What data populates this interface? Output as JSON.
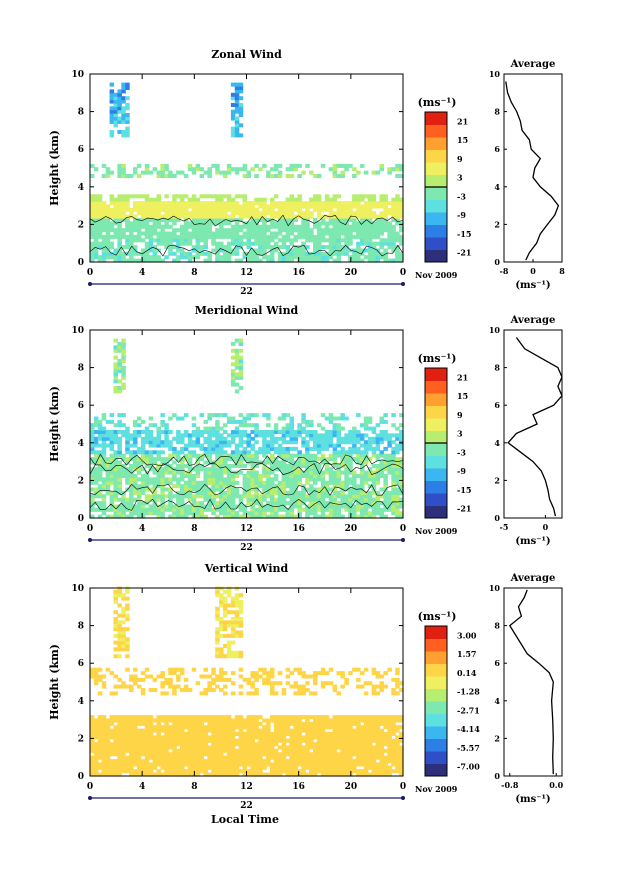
{
  "figure": {
    "date_label": "Nov 2009",
    "day_label": "22",
    "xlabel": "Local Time"
  },
  "chart_data": [
    {
      "type": "heatmap",
      "title": "Zonal Wind",
      "ylabel": "Height (km)",
      "xlim": [
        0,
        24
      ],
      "ylim": [
        0,
        10
      ],
      "x_ticks": [
        "0",
        "4",
        "8",
        "12",
        "16",
        "20",
        "0"
      ],
      "y_ticks": [
        "0",
        "2",
        "4",
        "6",
        "8",
        "10"
      ],
      "colorbar": {
        "unit": "(ms⁻¹)",
        "labels": [
          "21",
          "15",
          "9",
          "3",
          "-3",
          "-9",
          "-15",
          "-21"
        ],
        "range": [
          -24,
          24
        ],
        "zero_line": true
      },
      "average_profile": {
        "title": "Average",
        "xlabel": "(ms⁻¹)",
        "x_ticks": [
          "-8",
          "0",
          "8"
        ],
        "xlim": [
          -8,
          8
        ],
        "points": [
          [
            -2,
            0.1
          ],
          [
            -1,
            0.5
          ],
          [
            1,
            1.0
          ],
          [
            2,
            1.5
          ],
          [
            4,
            2.0
          ],
          [
            6,
            2.5
          ],
          [
            7,
            3.0
          ],
          [
            5,
            3.5
          ],
          [
            2,
            4.0
          ],
          [
            0,
            4.5
          ],
          [
            0.5,
            5.0
          ],
          [
            2,
            5.5
          ],
          [
            -0.5,
            6.0
          ],
          [
            -1,
            6.5
          ],
          [
            -3,
            7.0
          ],
          [
            -3.5,
            7.5
          ],
          [
            -4.5,
            8.0
          ],
          [
            -6,
            8.5
          ],
          [
            -7,
            9.0
          ],
          [
            -7.5,
            9.6
          ]
        ]
      }
    },
    {
      "type": "heatmap",
      "title": "Meridional Wind",
      "ylabel": "Height (km)",
      "xlim": [
        0,
        24
      ],
      "ylim": [
        0,
        10
      ],
      "x_ticks": [
        "0",
        "4",
        "8",
        "12",
        "16",
        "20",
        "0"
      ],
      "y_ticks": [
        "0",
        "2",
        "4",
        "6",
        "8",
        "10"
      ],
      "colorbar": {
        "unit": "(ms⁻¹)",
        "labels": [
          "21",
          "15",
          "9",
          "3",
          "-3",
          "-9",
          "-15",
          "-21"
        ],
        "range": [
          -24,
          24
        ],
        "zero_line": true
      },
      "average_profile": {
        "title": "Average",
        "xlabel": "(ms⁻¹)",
        "x_ticks": [
          "-5",
          "0"
        ],
        "xlim": [
          -5,
          2
        ],
        "points": [
          [
            1.2,
            0.1
          ],
          [
            1.0,
            0.5
          ],
          [
            0.5,
            1.0
          ],
          [
            0.3,
            1.5
          ],
          [
            0,
            2.0
          ],
          [
            -0.5,
            2.5
          ],
          [
            -1.5,
            3.0
          ],
          [
            -3,
            3.5
          ],
          [
            -4.5,
            4.0
          ],
          [
            -3.5,
            4.5
          ],
          [
            -1,
            5.0
          ],
          [
            -1.5,
            5.5
          ],
          [
            1,
            6.0
          ],
          [
            2,
            6.5
          ],
          [
            1.5,
            7.0
          ],
          [
            2,
            7.5
          ],
          [
            1.5,
            8.0
          ],
          [
            -0.5,
            8.5
          ],
          [
            -2.5,
            9.0
          ],
          [
            -3.5,
            9.6
          ]
        ]
      }
    },
    {
      "type": "heatmap",
      "title": "Vertical Wind",
      "ylabel": "Height (km)",
      "xlabel": "Local Time",
      "xlim": [
        0,
        24
      ],
      "ylim": [
        0,
        10
      ],
      "x_ticks": [
        "0",
        "4",
        "8",
        "12",
        "16",
        "20",
        "0"
      ],
      "y_ticks": [
        "0",
        "2",
        "4",
        "6",
        "8",
        "10"
      ],
      "colorbar": {
        "unit": "(ms⁻¹)",
        "labels": [
          "3.00",
          "1.57",
          "0.14",
          "-1.28",
          "-2.71",
          "-4.14",
          "-5.57",
          "-7.00"
        ],
        "range": [
          -7.7,
          3.7
        ],
        "zero_line": false
      },
      "average_profile": {
        "title": "Average",
        "xlabel": "(ms⁻¹)",
        "x_ticks": [
          "-0.8",
          "0.0"
        ],
        "xlim": [
          -0.9,
          0.1
        ],
        "points": [
          [
            -0.05,
            0.1
          ],
          [
            -0.06,
            1.0
          ],
          [
            -0.05,
            2.0
          ],
          [
            -0.06,
            3.0
          ],
          [
            -0.08,
            4.0
          ],
          [
            -0.05,
            5.0
          ],
          [
            -0.12,
            5.5
          ],
          [
            -0.3,
            6.0
          ],
          [
            -0.5,
            6.5
          ],
          [
            -0.6,
            7.0
          ],
          [
            -0.7,
            7.5
          ],
          [
            -0.8,
            8.0
          ],
          [
            -0.6,
            8.5
          ],
          [
            -0.65,
            9.0
          ],
          [
            -0.55,
            9.5
          ],
          [
            -0.5,
            9.9
          ]
        ]
      }
    }
  ]
}
